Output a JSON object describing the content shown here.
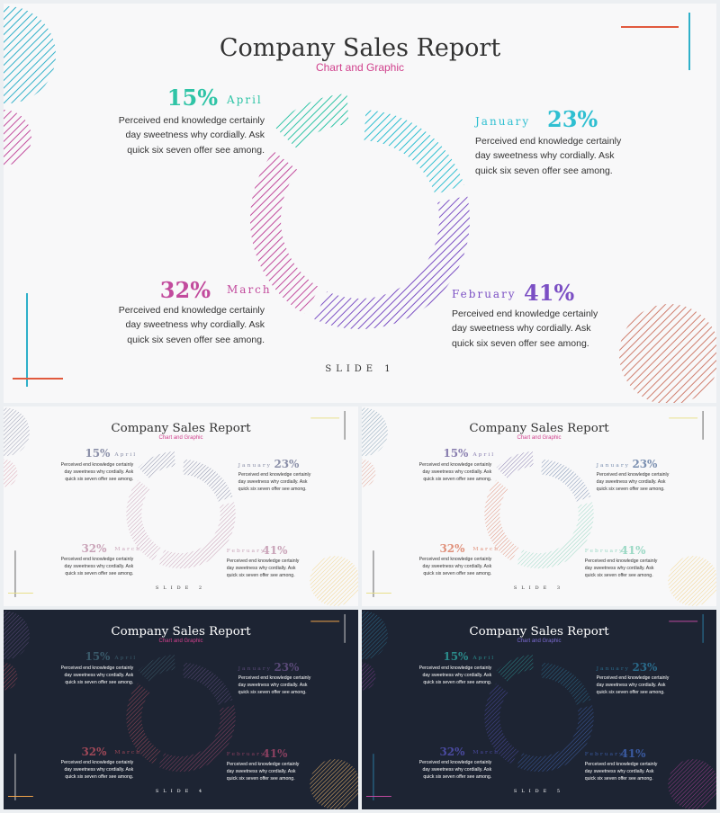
{
  "title": "Company Sales Report",
  "subtitle": "Chart and Graphic",
  "segments": {
    "january": {
      "pct": "23%",
      "month": "January",
      "desc": "Perceived end knowledge certainly day sweetness why cordially. Ask quick six seven offer see among."
    },
    "february": {
      "pct": "41%",
      "month": "February",
      "desc": "Perceived end knowledge certainly day sweetness why cordially. Ask quick six seven offer see among."
    },
    "march": {
      "pct": "32%",
      "month": "March",
      "desc": "Perceived end knowledge certainly day sweetness why cordially. Ask quick six seven offer see among."
    },
    "april": {
      "pct": "15%",
      "month": "April",
      "desc": "Perceived end knowledge certainly day sweetness why cordially. Ask quick six seven offer see among."
    }
  },
  "chart_data": {
    "type": "pie",
    "categories": [
      "January",
      "February",
      "March",
      "April"
    ],
    "values": [
      23,
      41,
      32,
      15
    ]
  },
  "slides": [
    {
      "label": "SLIDE 1",
      "bg": "#f8f8f9",
      "title_color": "#333333",
      "sub_color": "#d0408c",
      "text_color": "#333333",
      "colors": {
        "january": "#2fbfd1",
        "february": "#7b4fc4",
        "march": "#c24b9d",
        "april": "#2fc4a6",
        "circle1": "#2fb0c9",
        "circle2": "#c24b9d",
        "circle3": "#d08070",
        "line1": "#e15a3e",
        "line2": "#2fb0c9"
      }
    },
    {
      "label": "SLIDE 2",
      "bg": "#f8f8f9",
      "title_color": "#333333",
      "sub_color": "#d0408c",
      "text_color": "#333333",
      "colors": {
        "january": "#8a8fa8",
        "february": "#c9a3b8",
        "march": "#c9a3b8",
        "april": "#8a8fa8",
        "circle1": "#9a9fb4",
        "circle2": "#d9a2b0",
        "circle3": "#f2d48a",
        "line1": "#e8e08a",
        "line2": "#666666"
      }
    },
    {
      "label": "SLIDE 3",
      "bg": "#f8f8f9",
      "title_color": "#333333",
      "sub_color": "#d0408c",
      "text_color": "#333333",
      "colors": {
        "january": "#7a8fb0",
        "february": "#9ad8c4",
        "march": "#e0907a",
        "april": "#8a7fb0",
        "circle1": "#8aa4b8",
        "circle2": "#e0a090",
        "circle3": "#f2d48a",
        "line1": "#e8e08a",
        "line2": "#666666"
      }
    },
    {
      "label": "SLIDE 4",
      "bg": "#1d2433",
      "title_color": "#ffffff",
      "sub_color": "#d0408c",
      "text_color": "#ffffff",
      "colors": {
        "january": "#5a4a78",
        "february": "#8a4060",
        "march": "#a04858",
        "april": "#3a5a6a",
        "circle1": "#5a4a78",
        "circle2": "#a04858",
        "circle3": "#f2b86a",
        "line1": "#f2a44a",
        "line2": "#cccccc"
      }
    },
    {
      "label": "SLIDE 5",
      "bg": "#1d2433",
      "title_color": "#ffffff",
      "sub_color": "#7b6ad0",
      "text_color": "#ffffff",
      "colors": {
        "january": "#2a6a8a",
        "february": "#3a5aa0",
        "march": "#4a4aa0",
        "april": "#2a8a8a",
        "circle1": "#2a6a8a",
        "circle2": "#7a3a8a",
        "circle3": "#9a3a8a",
        "line1": "#c04aa0",
        "line2": "#2a7aa0"
      }
    }
  ]
}
